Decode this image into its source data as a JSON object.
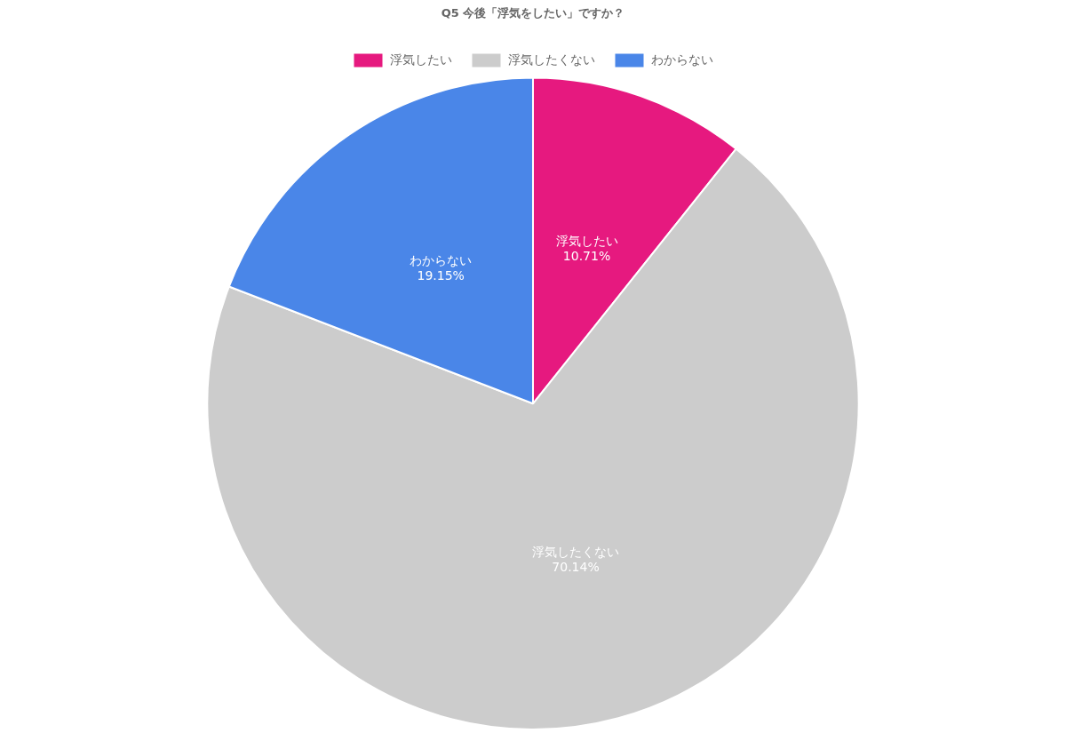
{
  "chart_data": {
    "type": "pie",
    "title": "Q5 今後「浮気をしたい」ですか？",
    "categories": [
      "浮気したい",
      "浮気したくない",
      "わからない"
    ],
    "values": [
      10.71,
      70.14,
      19.15
    ],
    "value_labels": [
      "10.71%",
      "70.14%",
      "19.15%"
    ],
    "colors": [
      "#e6197f",
      "#cccccc",
      "#4a86e8"
    ],
    "legend": "top"
  }
}
